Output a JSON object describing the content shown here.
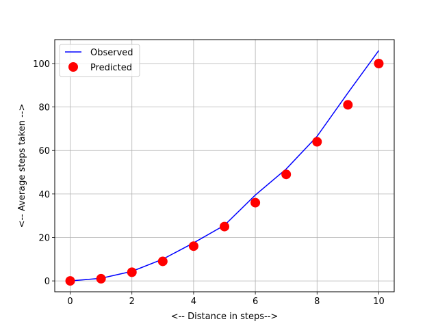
{
  "chart_data": {
    "type": "line",
    "title": "",
    "xlabel": "<-- Distance in steps-->",
    "ylabel": "<-- Average steps taken -->",
    "xlim": [
      -0.5,
      10.5
    ],
    "ylim": [
      -5,
      111
    ],
    "xticks": [
      0,
      2,
      4,
      6,
      8,
      10
    ],
    "yticks": [
      0,
      20,
      40,
      60,
      80,
      100
    ],
    "grid": true,
    "legend": "upper-left",
    "series": [
      {
        "name": "Observed",
        "style": "line",
        "color": "#0000ff",
        "x": [
          0,
          1,
          2,
          3,
          4,
          5,
          6,
          7,
          8,
          9,
          10
        ],
        "y": [
          0,
          1.2,
          4.4,
          10,
          17.5,
          25.6,
          39.5,
          51.5,
          66.5,
          86.5,
          106
        ]
      },
      {
        "name": "Predicted",
        "style": "marker",
        "color": "#ff0000",
        "x": [
          0,
          1,
          2,
          3,
          4,
          5,
          6,
          7,
          8,
          9,
          10
        ],
        "y": [
          0,
          1,
          4,
          9,
          16,
          25,
          36,
          49,
          64,
          81,
          100
        ]
      }
    ]
  }
}
